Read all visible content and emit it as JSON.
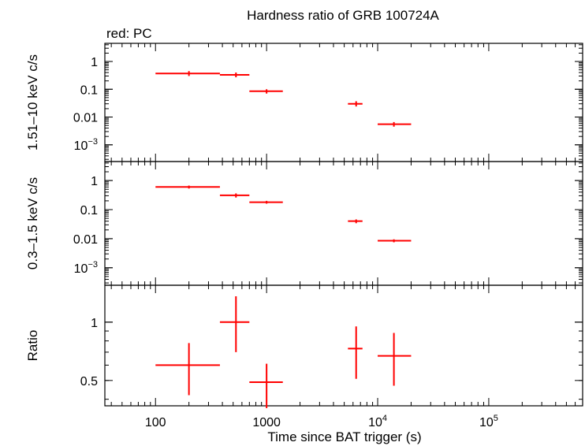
{
  "chart_data": {
    "type": "scatter",
    "title": "Hardness ratio of GRB 100724A",
    "legend_text": "red: PC",
    "xlabel": "Time since BAT trigger (s)",
    "x_scale": "log",
    "xlim": [
      35,
      700000
    ],
    "x_ticks": [
      {
        "value": 100,
        "label": "100"
      },
      {
        "value": 1000,
        "label": "1000"
      },
      {
        "value": 10000,
        "base": "10",
        "exp": "4"
      },
      {
        "value": 100000,
        "base": "10",
        "exp": "5"
      }
    ],
    "series_color": "#ff0000",
    "panels": [
      {
        "id": "hard",
        "ylabel": "1.51–10 keV c/s",
        "y_scale": "log",
        "ylim": [
          0.00025,
          4.5
        ],
        "y_ticks": [
          {
            "value": 1,
            "label": "1"
          },
          {
            "value": 0.1,
            "label": "0.1"
          },
          {
            "value": 0.01,
            "label": "0.01"
          },
          {
            "value": 0.001,
            "base": "10",
            "exp": "−3"
          }
        ],
        "points": [
          {
            "x": 200,
            "xlo": 100,
            "xhi": 380,
            "y": 0.37,
            "ylo": 0.3,
            "yhi": 0.45
          },
          {
            "x": 530,
            "xlo": 380,
            "xhi": 700,
            "y": 0.33,
            "ylo": 0.27,
            "yhi": 0.4
          },
          {
            "x": 1000,
            "xlo": 700,
            "xhi": 1400,
            "y": 0.085,
            "ylo": 0.07,
            "yhi": 0.1
          },
          {
            "x": 6400,
            "xlo": 5400,
            "xhi": 7300,
            "y": 0.03,
            "ylo": 0.024,
            "yhi": 0.037
          },
          {
            "x": 14000,
            "xlo": 10000,
            "xhi": 20000,
            "y": 0.0055,
            "ylo": 0.0045,
            "yhi": 0.0066
          }
        ]
      },
      {
        "id": "soft",
        "ylabel": "0.3–1.5 keV c/s",
        "y_scale": "log",
        "ylim": [
          0.00025,
          4.5
        ],
        "y_ticks": [
          {
            "value": 1,
            "label": "1"
          },
          {
            "value": 0.1,
            "label": "0.1"
          },
          {
            "value": 0.01,
            "label": "0.01"
          },
          {
            "value": 0.001,
            "base": "10",
            "exp": "−3"
          }
        ],
        "points": [
          {
            "x": 200,
            "xlo": 100,
            "xhi": 380,
            "y": 0.6,
            "ylo": 0.53,
            "yhi": 0.67
          },
          {
            "x": 530,
            "xlo": 380,
            "xhi": 700,
            "y": 0.31,
            "ylo": 0.26,
            "yhi": 0.36
          },
          {
            "x": 1000,
            "xlo": 700,
            "xhi": 1400,
            "y": 0.18,
            "ylo": 0.16,
            "yhi": 0.2
          },
          {
            "x": 6400,
            "xlo": 5400,
            "xhi": 7300,
            "y": 0.04,
            "ylo": 0.034,
            "yhi": 0.046
          },
          {
            "x": 14000,
            "xlo": 10000,
            "xhi": 20000,
            "y": 0.0085,
            "ylo": 0.0075,
            "yhi": 0.0095
          }
        ]
      },
      {
        "id": "ratio",
        "ylabel": "Ratio",
        "y_scale": "log",
        "ylim": [
          0.37,
          1.55
        ],
        "y_ticks": [
          {
            "value": 1,
            "label": "1"
          },
          {
            "value": 0.5,
            "label": "0.5"
          }
        ],
        "points": [
          {
            "x": 200,
            "xlo": 100,
            "xhi": 380,
            "y": 0.6,
            "ylo": 0.42,
            "yhi": 0.78
          },
          {
            "x": 530,
            "xlo": 380,
            "xhi": 700,
            "y": 1.0,
            "ylo": 0.7,
            "yhi": 1.36
          },
          {
            "x": 1000,
            "xlo": 700,
            "xhi": 1400,
            "y": 0.49,
            "ylo": 0.36,
            "yhi": 0.61
          },
          {
            "x": 6400,
            "xlo": 5400,
            "xhi": 7300,
            "y": 0.73,
            "ylo": 0.51,
            "yhi": 0.95
          },
          {
            "x": 14000,
            "xlo": 10000,
            "xhi": 20000,
            "y": 0.67,
            "ylo": 0.47,
            "yhi": 0.88
          }
        ]
      }
    ]
  }
}
